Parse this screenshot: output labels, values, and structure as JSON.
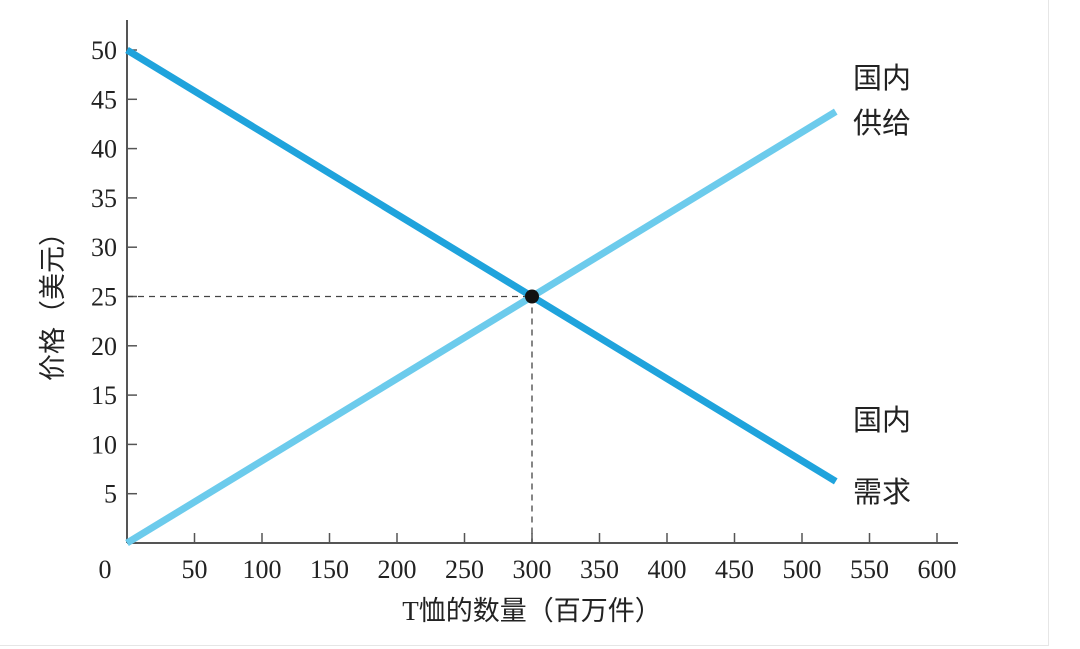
{
  "chart_data": {
    "type": "line",
    "xlabel": "T恤的数量（百万件）",
    "ylabel": "价格（美元）",
    "xlim": [
      0,
      600
    ],
    "ylim": [
      0,
      50
    ],
    "x_ticks": [
      "0",
      "50",
      "100",
      "150",
      "200",
      "250",
      "300",
      "350",
      "400",
      "450",
      "500",
      "550",
      "600"
    ],
    "y_ticks": [
      "5",
      "10",
      "15",
      "20",
      "25",
      "30",
      "35",
      "40",
      "45",
      "50"
    ],
    "grid": false,
    "series": [
      {
        "name": "国内需求",
        "label_lines": [
          "国内",
          "需求"
        ],
        "color": "#1fa3dc",
        "points": [
          [
            0,
            50
          ],
          [
            525,
            6.25
          ]
        ]
      },
      {
        "name": "国内供给",
        "label_lines": [
          "国内",
          "供给"
        ],
        "color": "#6ccbec",
        "points": [
          [
            0,
            0
          ],
          [
            525,
            43.75
          ]
        ]
      }
    ],
    "equilibrium": {
      "x": 300,
      "y": 25
    }
  }
}
